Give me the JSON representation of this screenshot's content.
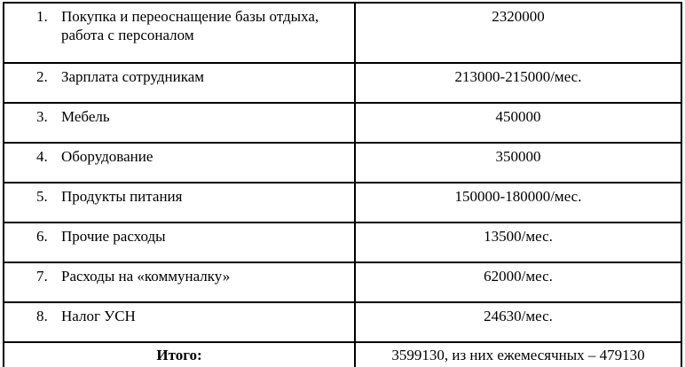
{
  "colors": {
    "border": "#000000",
    "text": "#000000",
    "background": "#ffffff"
  },
  "table": {
    "rows": [
      {
        "num": "1.",
        "label": "Покупка и переоснащение базы отдыха, работа с персоналом",
        "value": "2320000"
      },
      {
        "num": "2.",
        "label": "Зарплата сотрудникам",
        "value": "213000-215000/мес."
      },
      {
        "num": "3.",
        "label": "Мебель",
        "value": "450000"
      },
      {
        "num": "4.",
        "label": "Оборудование",
        "value": "350000"
      },
      {
        "num": "5.",
        "label": "Продукты питания",
        "value": "150000-180000/мес."
      },
      {
        "num": "6.",
        "label": "Прочие расходы",
        "value": "13500/мес."
      },
      {
        "num": "7.",
        "label": "Расходы на «коммуналку»",
        "value": "62000/мес."
      },
      {
        "num": "8.",
        "label": "Налог УСН",
        "value": "24630/мес."
      }
    ],
    "total": {
      "label": "Итого:",
      "value": "3599130, из них ежемесячных – 479130"
    }
  }
}
